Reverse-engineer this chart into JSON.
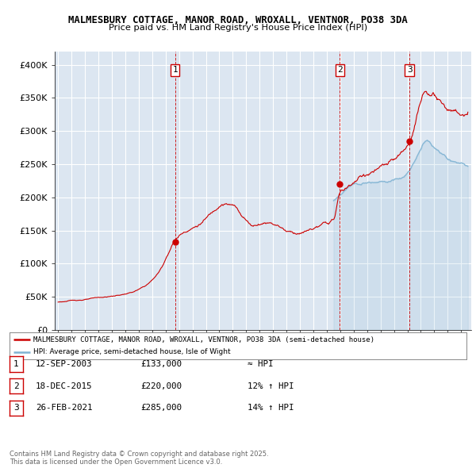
{
  "title_line1": "MALMESBURY COTTAGE, MANOR ROAD, WROXALL, VENTNOR, PO38 3DA",
  "title_line2": "Price paid vs. HM Land Registry's House Price Index (HPI)",
  "bg_color": "#dce6f1",
  "grid_color": "#ffffff",
  "red_color": "#cc0000",
  "blue_line_color": "#7fb3d3",
  "ylabel_ticks": [
    "£0",
    "£50K",
    "£100K",
    "£150K",
    "£200K",
    "£250K",
    "£300K",
    "£350K",
    "£400K"
  ],
  "ytick_values": [
    0,
    50000,
    100000,
    150000,
    200000,
    250000,
    300000,
    350000,
    400000
  ],
  "ylim": [
    0,
    420000
  ],
  "xlim_start": 1994.75,
  "xlim_end": 2025.75,
  "purchase_dates": [
    2003.71,
    2015.96,
    2021.15
  ],
  "purchase_prices": [
    133000,
    220000,
    285000
  ],
  "purchase_labels": [
    "1",
    "2",
    "3"
  ],
  "footnote": "Contains HM Land Registry data © Crown copyright and database right 2025.\nThis data is licensed under the Open Government Licence v3.0.",
  "legend_line1": "MALMESBURY COTTAGE, MANOR ROAD, WROXALL, VENTNOR, PO38 3DA (semi-detached house)",
  "legend_line2": "HPI: Average price, semi-detached house, Isle of Wight",
  "table_rows": [
    [
      "1",
      "12-SEP-2003",
      "£133,000",
      "≈ HPI"
    ],
    [
      "2",
      "18-DEC-2015",
      "£220,000",
      "12% ↑ HPI"
    ],
    [
      "3",
      "26-FEB-2021",
      "£285,000",
      "14% ↑ HPI"
    ]
  ]
}
